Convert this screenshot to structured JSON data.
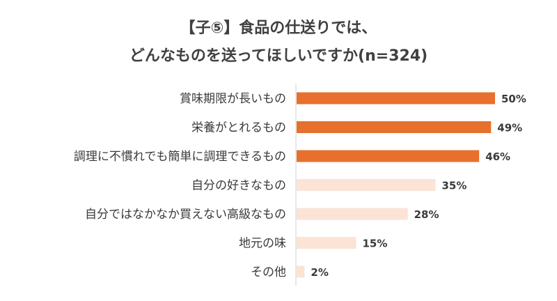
{
  "chart_data": {
    "type": "bar",
    "orientation": "horizontal",
    "title": "【子⑤】食品の仕送りでは、",
    "subtitle": "どんなものを送ってほしいですか(n=324)",
    "categories": [
      "賞味期限が長いもの",
      "栄養がとれるもの",
      "調理に不慣れでも簡単に調理できるもの",
      "自分の好きなもの",
      "自分ではなかなか買えない高級なもの",
      "地元の味",
      "その他"
    ],
    "values": [
      50,
      49,
      46,
      35,
      28,
      15,
      2
    ],
    "value_labels": [
      "50%",
      "49%",
      "46%",
      "35%",
      "28%",
      "15%",
      "2%"
    ],
    "xlim": [
      0,
      100
    ],
    "grid": false,
    "legend": "none",
    "colors": {
      "highlight": "#e8702f",
      "muted": "#fbe3d6",
      "axis": "#d0d0d0"
    },
    "highlight_count": 3
  }
}
